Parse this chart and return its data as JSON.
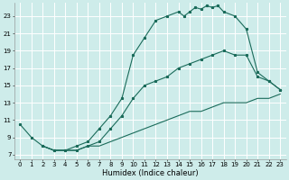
{
  "xlabel": "Humidex (Indice chaleur)",
  "ylabel": "",
  "background_color": "#ceecea",
  "grid_color": "#ffffff",
  "line_color": "#1a6b5a",
  "xlim": [
    -0.5,
    23.5
  ],
  "ylim": [
    6.5,
    24.5
  ],
  "xticks": [
    0,
    1,
    2,
    3,
    4,
    5,
    6,
    7,
    8,
    9,
    10,
    11,
    12,
    13,
    14,
    15,
    16,
    17,
    18,
    19,
    20,
    21,
    22,
    23
  ],
  "yticks": [
    7,
    9,
    11,
    13,
    15,
    17,
    19,
    21,
    23
  ],
  "curve1_x": [
    0,
    1,
    2,
    3,
    4,
    5,
    6,
    7,
    8,
    9,
    10,
    11,
    12,
    13,
    14,
    14.5,
    15,
    15.5,
    16,
    16.5,
    17,
    17.5,
    18,
    19,
    20,
    21,
    22,
    23
  ],
  "curve1_y": [
    10.5,
    9.0,
    8.0,
    7.5,
    7.5,
    8.0,
    8.5,
    10.0,
    11.5,
    13.5,
    18.5,
    20.5,
    22.5,
    23.0,
    23.5,
    23.0,
    23.5,
    24.0,
    23.8,
    24.2,
    24.0,
    24.2,
    23.5,
    23.0,
    21.5,
    16.5,
    15.5,
    14.5
  ],
  "curve2_x": [
    2,
    3,
    4,
    5,
    6,
    7,
    8,
    9,
    10,
    11,
    12,
    13,
    14,
    15,
    16,
    17,
    18,
    19,
    20,
    21,
    22,
    23
  ],
  "curve2_y": [
    8.0,
    7.5,
    7.5,
    7.5,
    8.0,
    8.5,
    10.0,
    11.5,
    13.5,
    15.0,
    15.5,
    16.0,
    17.0,
    17.5,
    18.0,
    18.5,
    19.0,
    18.5,
    18.5,
    16.0,
    15.5,
    14.5
  ],
  "curve3_x": [
    2,
    3,
    4,
    5,
    6,
    7,
    8,
    9,
    10,
    11,
    12,
    13,
    14,
    15,
    16,
    17,
    18,
    19,
    20,
    21,
    22,
    23
  ],
  "curve3_y": [
    8.0,
    7.5,
    7.5,
    7.5,
    8.0,
    8.0,
    8.5,
    9.0,
    9.5,
    10.0,
    10.5,
    11.0,
    11.5,
    12.0,
    12.0,
    12.5,
    13.0,
    13.0,
    13.0,
    13.5,
    13.5,
    14.0
  ],
  "xlabel_fontsize": 6.0,
  "tick_fontsize": 5.0
}
